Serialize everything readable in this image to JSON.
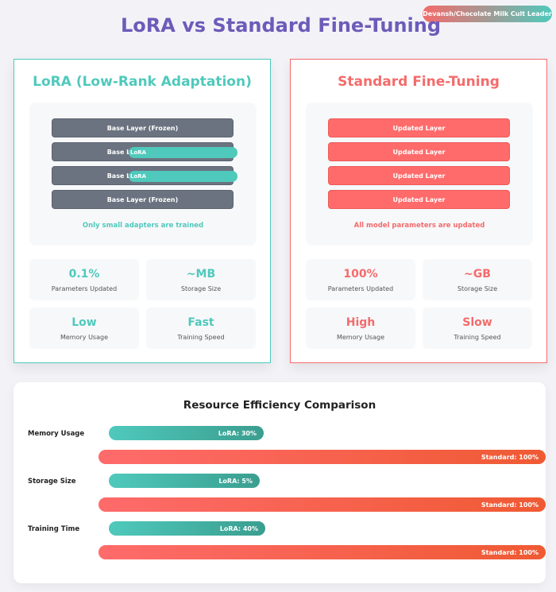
{
  "badge": "Devansh/Chocolate Milk Cult Leader",
  "title": "LoRA vs Standard Fine-Tuning",
  "lora": {
    "title": "LoRA (Low-Rank Adaptation)",
    "layers": [
      {
        "label": "Base Layer (Frozen)",
        "adapter": ""
      },
      {
        "label": "Base Layer (Frozen)",
        "adapter": "LoRA"
      },
      {
        "label": "Base Layer (Frozen)",
        "adapter": "LoRA"
      },
      {
        "label": "Base Layer (Frozen)",
        "adapter": ""
      }
    ],
    "caption": "Only small adapters are trained",
    "stats": [
      {
        "value": "0.1%",
        "label": "Parameters Updated"
      },
      {
        "value": "~MB",
        "label": "Storage Size"
      },
      {
        "value": "Low",
        "label": "Memory Usage"
      },
      {
        "value": "Fast",
        "label": "Training Speed"
      }
    ]
  },
  "standard": {
    "title": "Standard Fine-Tuning",
    "layers": [
      "Updated Layer",
      "Updated Layer",
      "Updated Layer",
      "Updated Layer"
    ],
    "caption": "All model parameters are updated",
    "stats": [
      {
        "value": "100%",
        "label": "Parameters Updated"
      },
      {
        "value": "~GB",
        "label": "Storage Size"
      },
      {
        "value": "High",
        "label": "Memory Usage"
      },
      {
        "value": "Slow",
        "label": "Training Speed"
      }
    ]
  },
  "comparison": {
    "title": "Resource Efficiency Comparison",
    "metrics": [
      {
        "name": "Memory Usage",
        "lora_label": "LoRA: 30%",
        "lora_value": 30,
        "std_label": "Standard: 100%",
        "std_value": 100
      },
      {
        "name": "Storage Size",
        "lora_label": "LoRA: 5%",
        "lora_value": 5,
        "std_label": "Standard: 100%",
        "std_value": 100
      },
      {
        "name": "Training Time",
        "lora_label": "LoRA: 40%",
        "lora_value": 40,
        "std_label": "Standard: 100%",
        "std_value": 100
      }
    ]
  },
  "colors": {
    "lora": "#4fc9bc",
    "standard": "#f46b6b",
    "title": "#6d5bb9",
    "frozen": "#6b7380"
  }
}
